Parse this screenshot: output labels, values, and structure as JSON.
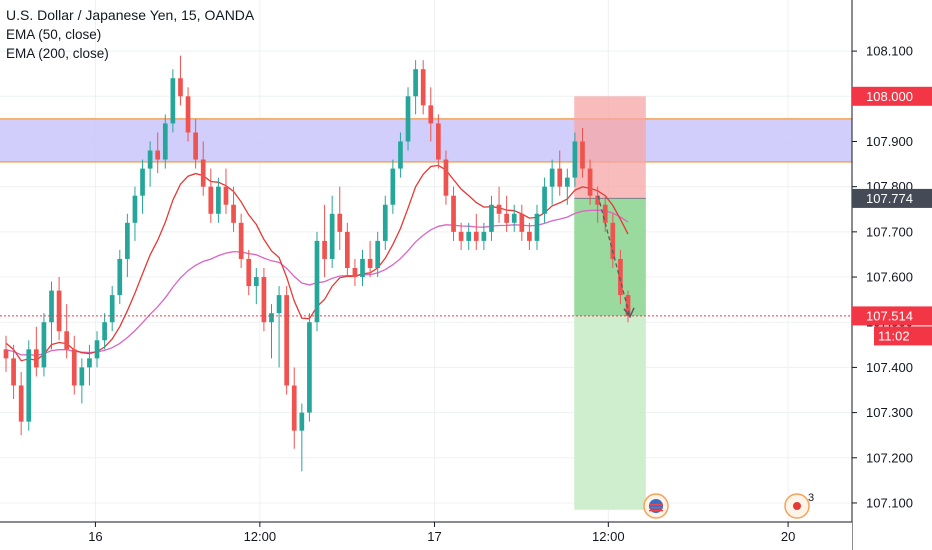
{
  "legend": {
    "title": "U.S. Dollar / Japanese Yen, 15, OANDA",
    "indicators": [
      "EMA (50, close)",
      "EMA (200, close)"
    ]
  },
  "colors": {
    "up": "#26a69a",
    "down": "#ef5350",
    "ema50": "#e53935",
    "ema200": "#d966c5",
    "zone_fill": "#c9c5fb",
    "zone_line": "#f5a35a",
    "stop_fill": "#f7a6a6",
    "target_fill": "#8fd694",
    "target_fill_light": "#c9ecc9",
    "tag_red": "#f23645",
    "tag_dark": "#454a57",
    "grid": "#eef0f3"
  },
  "chart_data": {
    "type": "candlestick",
    "symbol": "USDJPY",
    "interval": "15",
    "y_ticks": [
      "108.100",
      "108.000",
      "107.900",
      "107.800",
      "107.700",
      "107.600",
      "107.500",
      "107.400",
      "107.300",
      "107.200",
      "107.100"
    ],
    "ylim": [
      107.08,
      108.16
    ],
    "x_ticks": [
      {
        "label": "16",
        "pos": 0.112
      },
      {
        "label": "12:00",
        "pos": 0.305
      },
      {
        "label": "17",
        "pos": 0.51
      },
      {
        "label": "12:00",
        "pos": 0.714
      },
      {
        "label": "20",
        "pos": 0.925
      }
    ],
    "price_tags": [
      {
        "label": "108.000",
        "value": 108.0,
        "kind": "stop"
      },
      {
        "label": "107.774",
        "value": 107.774,
        "kind": "entry"
      },
      {
        "label": "107.514",
        "value": 107.514,
        "kind": "last"
      },
      {
        "label": "11:02",
        "value": 107.475,
        "kind": "countdown"
      }
    ],
    "last_price": 107.514,
    "zone": {
      "top": 107.95,
      "bottom": 107.855
    },
    "position": {
      "entry": 107.774,
      "stop": 108.0,
      "target": 107.514,
      "lower_extent": 107.085,
      "x0_frac": 0.674,
      "x1_frac": 0.758
    },
    "candles_ohlc": [
      [
        107.44,
        107.47,
        107.39,
        107.42
      ],
      [
        107.42,
        107.45,
        107.33,
        107.36
      ],
      [
        107.36,
        107.39,
        107.25,
        107.28
      ],
      [
        107.28,
        107.46,
        107.26,
        107.44
      ],
      [
        107.44,
        107.49,
        107.38,
        107.4
      ],
      [
        107.4,
        107.52,
        107.38,
        107.5
      ],
      [
        107.5,
        107.59,
        107.44,
        107.57
      ],
      [
        107.57,
        107.6,
        107.46,
        107.48
      ],
      [
        107.48,
        107.54,
        107.42,
        107.44
      ],
      [
        107.44,
        107.47,
        107.34,
        107.36
      ],
      [
        107.36,
        107.42,
        107.32,
        107.4
      ],
      [
        107.4,
        107.45,
        107.36,
        107.42
      ],
      [
        107.42,
        107.48,
        107.4,
        107.46
      ],
      [
        107.46,
        107.52,
        107.44,
        107.5
      ],
      [
        107.5,
        107.58,
        107.48,
        107.56
      ],
      [
        107.56,
        107.66,
        107.54,
        107.64
      ],
      [
        107.64,
        107.74,
        107.6,
        107.72
      ],
      [
        107.72,
        107.8,
        107.68,
        107.78
      ],
      [
        107.78,
        107.86,
        107.74,
        107.84
      ],
      [
        107.84,
        107.9,
        107.8,
        107.88
      ],
      [
        107.88,
        107.92,
        107.83,
        107.86
      ],
      [
        107.86,
        107.96,
        107.84,
        107.94
      ],
      [
        107.94,
        108.06,
        107.92,
        108.04
      ],
      [
        108.04,
        108.09,
        107.98,
        108.0
      ],
      [
        108.0,
        108.02,
        107.9,
        107.92
      ],
      [
        107.92,
        107.95,
        107.84,
        107.86
      ],
      [
        107.86,
        107.9,
        107.78,
        107.8
      ],
      [
        107.8,
        107.84,
        107.72,
        107.74
      ],
      [
        107.74,
        107.82,
        107.72,
        107.8
      ],
      [
        107.8,
        107.84,
        107.74,
        107.76
      ],
      [
        107.76,
        107.8,
        107.7,
        107.72
      ],
      [
        107.72,
        107.74,
        107.62,
        107.64
      ],
      [
        107.64,
        107.66,
        107.56,
        107.58
      ],
      [
        107.58,
        107.62,
        107.54,
        107.6
      ],
      [
        107.6,
        107.62,
        107.48,
        107.5
      ],
      [
        107.5,
        107.54,
        107.42,
        107.52
      ],
      [
        107.52,
        107.58,
        107.4,
        107.56
      ],
      [
        107.56,
        107.58,
        107.34,
        107.36
      ],
      [
        107.36,
        107.4,
        107.22,
        107.26
      ],
      [
        107.26,
        107.32,
        107.17,
        107.3
      ],
      [
        107.3,
        107.52,
        107.28,
        107.5
      ],
      [
        107.5,
        107.7,
        107.48,
        107.68
      ],
      [
        107.68,
        107.76,
        107.6,
        107.64
      ],
      [
        107.64,
        107.78,
        107.62,
        107.74
      ],
      [
        107.74,
        107.8,
        107.66,
        107.7
      ],
      [
        107.7,
        107.72,
        107.6,
        107.62
      ],
      [
        107.62,
        107.64,
        107.58,
        107.6
      ],
      [
        107.6,
        107.66,
        107.58,
        107.64
      ],
      [
        107.64,
        107.68,
        107.6,
        107.62
      ],
      [
        107.62,
        107.7,
        107.6,
        107.68
      ],
      [
        107.68,
        107.78,
        107.66,
        107.76
      ],
      [
        107.76,
        107.86,
        107.74,
        107.84
      ],
      [
        107.84,
        107.92,
        107.82,
        107.9
      ],
      [
        107.9,
        108.02,
        107.88,
        108.0
      ],
      [
        108.0,
        108.08,
        107.96,
        108.06
      ],
      [
        108.06,
        108.08,
        107.96,
        107.98
      ],
      [
        107.98,
        108.02,
        107.9,
        107.94
      ],
      [
        107.94,
        107.96,
        107.84,
        107.86
      ],
      [
        107.86,
        107.88,
        107.76,
        107.78
      ],
      [
        107.78,
        107.8,
        107.68,
        107.7
      ],
      [
        107.7,
        107.72,
        107.66,
        107.68
      ],
      [
        107.68,
        107.72,
        107.66,
        107.7
      ],
      [
        107.7,
        107.74,
        107.66,
        107.68
      ],
      [
        107.68,
        107.72,
        107.66,
        107.7
      ],
      [
        107.7,
        107.78,
        107.68,
        107.76
      ],
      [
        107.76,
        107.8,
        107.72,
        107.74
      ],
      [
        107.74,
        107.78,
        107.7,
        107.72
      ],
      [
        107.72,
        107.76,
        107.7,
        107.74
      ],
      [
        107.74,
        107.76,
        107.68,
        107.7
      ],
      [
        107.7,
        107.72,
        107.66,
        107.68
      ],
      [
        107.68,
        107.76,
        107.66,
        107.74
      ],
      [
        107.74,
        107.82,
        107.72,
        107.8
      ],
      [
        107.8,
        107.86,
        107.76,
        107.84
      ],
      [
        107.84,
        107.88,
        107.78,
        107.8
      ],
      [
        107.8,
        107.84,
        107.76,
        107.82
      ],
      [
        107.82,
        107.92,
        107.8,
        107.9
      ],
      [
        107.9,
        107.93,
        107.82,
        107.84
      ],
      [
        107.84,
        107.86,
        107.76,
        107.78
      ],
      [
        107.78,
        107.8,
        107.72,
        107.76
      ],
      [
        107.76,
        107.78,
        107.7,
        107.72
      ],
      [
        107.72,
        107.74,
        107.62,
        107.64
      ],
      [
        107.64,
        107.66,
        107.54,
        107.56
      ],
      [
        107.56,
        107.57,
        107.5,
        107.514
      ]
    ]
  },
  "overlays": {
    "earnings_badge_count": "3"
  }
}
